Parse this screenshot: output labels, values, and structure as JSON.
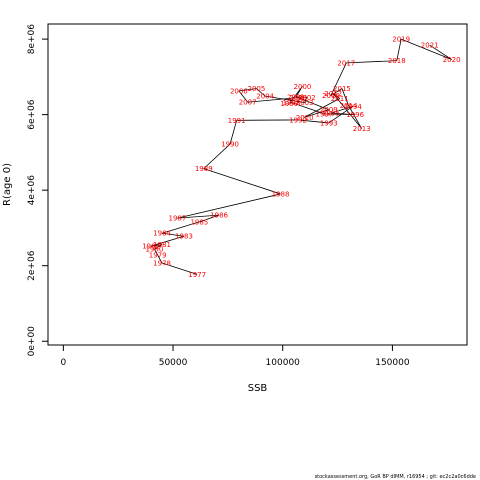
{
  "chart_data": {
    "type": "line",
    "xlabel": "SSB",
    "ylabel": "R(age 0)",
    "xlim": [
      -7000,
      184000
    ],
    "ylim": [
      -100000,
      8400000
    ],
    "xticks": [
      0,
      50000,
      100000,
      150000
    ],
    "xtick_labels": [
      "0",
      "50000",
      "100000",
      "150000"
    ],
    "yticks": [
      0,
      2000000,
      4000000,
      6000000,
      8000000
    ],
    "ytick_labels": [
      "0e+00",
      "2e+06",
      "4e+06",
      "6e+06",
      "8e+06"
    ],
    "line_color": "#000000",
    "label_color": "#ff0000",
    "points": [
      {
        "year": "1977",
        "x": 61000,
        "y": 1770000
      },
      {
        "year": "1978",
        "x": 45000,
        "y": 2070000
      },
      {
        "year": "1979",
        "x": 43000,
        "y": 2280000
      },
      {
        "year": "1980",
        "x": 41500,
        "y": 2440000
      },
      {
        "year": "1981",
        "x": 45000,
        "y": 2560000
      },
      {
        "year": "1982",
        "x": 40000,
        "y": 2520000
      },
      {
        "year": "1983",
        "x": 55000,
        "y": 2780000
      },
      {
        "year": "1984",
        "x": 45000,
        "y": 2860000
      },
      {
        "year": "1985",
        "x": 62000,
        "y": 3160000
      },
      {
        "year": "1986",
        "x": 71000,
        "y": 3340000
      },
      {
        "year": "1987",
        "x": 52000,
        "y": 3260000
      },
      {
        "year": "1988",
        "x": 99000,
        "y": 3900000
      },
      {
        "year": "1989",
        "x": 64000,
        "y": 4570000
      },
      {
        "year": "1990",
        "x": 76000,
        "y": 5220000
      },
      {
        "year": "1991",
        "x": 79000,
        "y": 5850000
      },
      {
        "year": "1992",
        "x": 107000,
        "y": 5860000
      },
      {
        "year": "1993",
        "x": 121000,
        "y": 5780000
      },
      {
        "year": "1994",
        "x": 132000,
        "y": 6220000
      },
      {
        "year": "1995",
        "x": 122000,
        "y": 6040000
      },
      {
        "year": "1996",
        "x": 133000,
        "y": 6000000
      },
      {
        "year": "1997",
        "x": 119000,
        "y": 6020000
      },
      {
        "year": "1998",
        "x": 104000,
        "y": 6320000
      },
      {
        "year": "1999",
        "x": 103000,
        "y": 6300000
      },
      {
        "year": "2000",
        "x": 109000,
        "y": 6750000
      },
      {
        "year": "2001",
        "x": 106000,
        "y": 6470000
      },
      {
        "year": "2002",
        "x": 111000,
        "y": 6460000
      },
      {
        "year": "2003",
        "x": 110000,
        "y": 6320000
      },
      {
        "year": "2004",
        "x": 92000,
        "y": 6490000
      },
      {
        "year": "2005",
        "x": 88000,
        "y": 6690000
      },
      {
        "year": "2006",
        "x": 80000,
        "y": 6630000
      },
      {
        "year": "2007",
        "x": 84000,
        "y": 6330000
      },
      {
        "year": "2008",
        "x": 107000,
        "y": 6450000
      },
      {
        "year": "2009",
        "x": 121000,
        "y": 6130000
      },
      {
        "year": "2010",
        "x": 110000,
        "y": 5930000
      },
      {
        "year": "2011",
        "x": 126000,
        "y": 6430000
      },
      {
        "year": "2012",
        "x": 123000,
        "y": 6560000
      },
      {
        "year": "2013",
        "x": 136000,
        "y": 5630000
      },
      {
        "year": "2014",
        "x": 130000,
        "y": 6240000
      },
      {
        "year": "2015",
        "x": 127000,
        "y": 6690000
      },
      {
        "year": "2016",
        "x": 122000,
        "y": 6510000
      },
      {
        "year": "2017",
        "x": 129000,
        "y": 7370000
      },
      {
        "year": "2018",
        "x": 152000,
        "y": 7430000
      },
      {
        "year": "2019",
        "x": 154000,
        "y": 8000000
      },
      {
        "year": "2020",
        "x": 177000,
        "y": 7460000
      },
      {
        "year": "2021",
        "x": 167000,
        "y": 7840000
      }
    ]
  },
  "footer": {
    "text": "stockassessment.org, GoR BP dIMM, r16954 ; git: ec2c2a0c6dde"
  }
}
